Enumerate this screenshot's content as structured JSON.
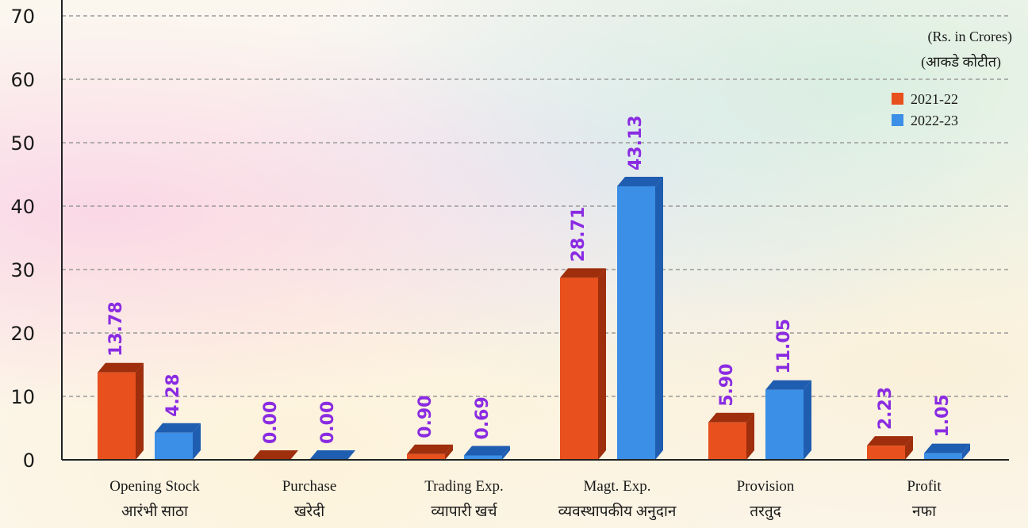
{
  "chart_data": {
    "type": "bar",
    "categories": [
      [
        "Opening Stock",
        "आरंभी साठा"
      ],
      [
        "Purchase",
        "खरेदी"
      ],
      [
        "Trading Exp.",
        "व्यापारी खर्च"
      ],
      [
        "Magt. Exp.",
        "व्यवस्थापकीय अनुदान"
      ],
      [
        "Provision",
        "तरतुद"
      ],
      [
        "Profit",
        "नफा"
      ]
    ],
    "series": [
      {
        "name": "2021-22",
        "values": [
          13.78,
          0.0,
          0.9,
          28.71,
          5.9,
          2.23
        ],
        "labels": [
          "13.78",
          "0.00",
          "0.90",
          "28.71",
          "5.90",
          "2.23"
        ]
      },
      {
        "name": "2022-23",
        "values": [
          4.28,
          0.0,
          0.69,
          43.13,
          11.05,
          1.05
        ],
        "labels": [
          "4.28",
          "0.00",
          "0.69",
          "43.13",
          "11.05",
          "1.05"
        ]
      }
    ],
    "ylim": [
      0,
      70
    ],
    "yticks": [
      "0",
      "10",
      "20",
      "30",
      "40",
      "50",
      "60",
      "70"
    ],
    "unit_note": [
      "(Rs. in Crores)",
      "(आकडे कोटीत)"
    ],
    "grid": true,
    "legend_position": "top-right",
    "colors": {
      "series": [
        "#e8501e",
        "#3b8fe6"
      ],
      "series_side": [
        "#9e2e0c",
        "#1f5db0"
      ],
      "value_label": "#8a2be2",
      "grid": "#9a9a9a",
      "axis": "#222222"
    }
  }
}
